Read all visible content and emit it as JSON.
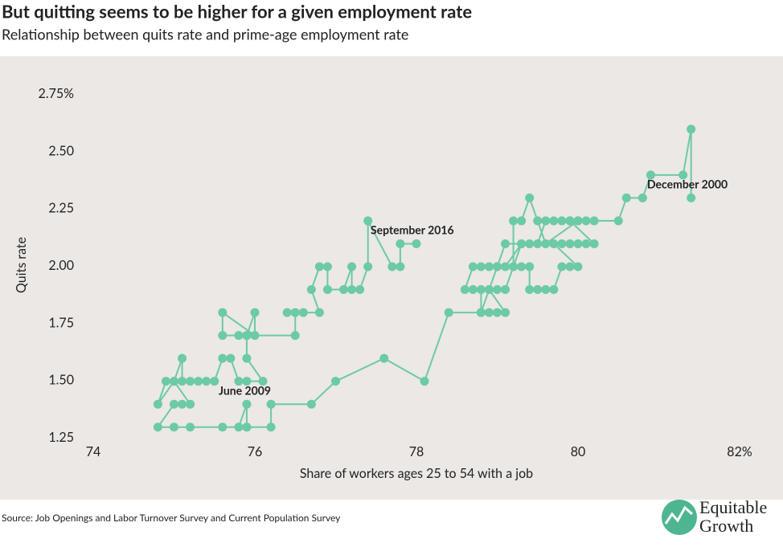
{
  "chart_data": {
    "type": "scatter",
    "connected": true,
    "title": "But quitting seems to be higher for a given employment rate",
    "subtitle": "Relationship between quits rate and prime-age employment rate",
    "x_label": "Share of workers ages 25 to 54 with a job",
    "y_label": "Quits rate",
    "annotations": [
      "December 2000",
      "September 2016",
      "June 2009"
    ],
    "source": "Source: Job Openings and Labor Turnover Survey and Current Population Survey",
    "logo": [
      "Equitable",
      "Growth"
    ],
    "color": "#6ccaa5",
    "grid": false,
    "xlim": [
      74,
      82
    ],
    "xticks": [
      74,
      76,
      78,
      80,
      {
        "value": 82,
        "label": "82%"
      }
    ],
    "ylim": [
      1.25,
      2.75
    ],
    "yticks": [
      1.25,
      {
        "value": 1.5,
        "label": "1.50"
      },
      {
        "value": 1.75,
        "label": "1.75"
      },
      {
        "value": 2.0,
        "label": "2.00"
      },
      {
        "value": 2.25,
        "label": "2.25"
      },
      {
        "value": 2.5,
        "label": "2.50"
      },
      {
        "value": 2.75,
        "label": "2.75%"
      }
    ],
    "x": [
      81.4,
      81.4,
      81.3,
      80.9,
      80.8,
      80.6,
      80.5,
      80.2,
      80.1,
      80.0,
      79.9,
      79.8,
      79.7,
      79.6,
      79.5,
      79.4,
      79.3,
      79.1,
      79.0,
      78.9,
      78.8,
      78.7,
      78.6,
      78.7,
      78.8,
      78.8,
      78.9,
      79.0,
      79.1,
      78.9,
      79.0,
      79.1,
      79.2,
      79.3,
      79.4,
      79.4,
      79.5,
      79.6,
      79.7,
      79.8,
      79.9,
      80.0,
      79.7,
      79.8,
      79.9,
      80.0,
      80.1,
      80.2,
      79.9,
      80.0,
      79.6,
      79.5,
      79.4,
      79.3,
      79.2,
      79.2,
      79.3,
      79.1,
      79.0,
      78.9,
      78.8,
      78.4,
      78.1,
      77.6,
      77.0,
      76.7,
      76.2,
      76.2,
      75.9,
      75.8,
      75.9,
      75.9,
      75.6,
      75.2,
      75.0,
      74.8,
      75.0,
      75.1,
      75.2,
      75.0,
      74.9,
      74.8,
      75.0,
      75.1,
      75.1,
      75.2,
      75.3,
      75.4,
      75.5,
      75.6,
      75.7,
      75.8,
      75.9,
      76.1,
      75.9,
      75.9,
      75.8,
      75.6,
      75.6,
      76.0,
      76.0,
      75.9,
      76.5,
      76.5,
      76.4,
      76.6,
      76.8,
      76.7,
      76.8,
      76.9,
      76.9,
      77.1,
      77.2,
      77.2,
      77.3,
      77.4,
      77.4,
      77.7,
      77.8,
      77.8,
      78.0
    ],
    "values": [
      2.3,
      2.6,
      2.4,
      2.4,
      2.3,
      2.3,
      2.2,
      2.2,
      2.2,
      2.2,
      2.2,
      2.2,
      2.2,
      2.2,
      2.1,
      2.1,
      2.1,
      2.1,
      2.0,
      2.0,
      2.0,
      2.0,
      1.9,
      1.9,
      1.9,
      1.8,
      1.8,
      1.8,
      1.8,
      1.9,
      1.9,
      1.9,
      2.0,
      2.0,
      2.0,
      1.9,
      1.9,
      1.9,
      1.9,
      2.0,
      2.0,
      2.0,
      2.1,
      2.1,
      2.1,
      2.1,
      2.1,
      2.1,
      2.2,
      2.2,
      2.1,
      2.2,
      2.3,
      2.2,
      2.2,
      2.0,
      2.1,
      2.0,
      2.0,
      1.9,
      1.8,
      1.8,
      1.5,
      1.6,
      1.5,
      1.4,
      1.4,
      1.3,
      1.3,
      1.3,
      1.4,
      1.3,
      1.3,
      1.3,
      1.3,
      1.3,
      1.4,
      1.4,
      1.4,
      1.5,
      1.5,
      1.4,
      1.5,
      1.6,
      1.5,
      1.5,
      1.5,
      1.5,
      1.5,
      1.6,
      1.6,
      1.5,
      1.5,
      1.5,
      1.6,
      1.7,
      1.7,
      1.7,
      1.8,
      1.7,
      1.8,
      1.7,
      1.7,
      1.8,
      1.8,
      1.8,
      1.8,
      1.9,
      2.0,
      2.0,
      1.9,
      1.9,
      2.0,
      1.9,
      1.9,
      2.0,
      2.2,
      2.0,
      2.0,
      2.1,
      2.1
    ]
  }
}
